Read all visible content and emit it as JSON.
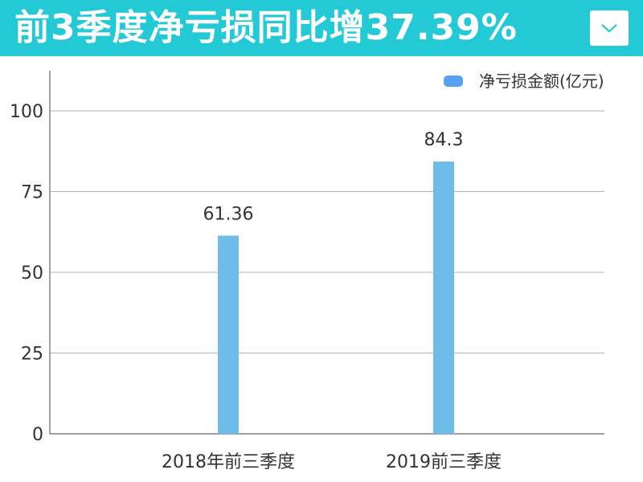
{
  "header": {
    "title": "前3季度净亏损同比增37.39%",
    "dropdown_icon": "chevron-down-icon",
    "background_color": "#24c9d6"
  },
  "chart_data": {
    "type": "bar",
    "categories": [
      "2018年前三季度",
      "2019前三季度"
    ],
    "series": [
      {
        "name": "净亏损金额(亿元)",
        "values": [
          61.36,
          84.3
        ],
        "labels": [
          "61.36",
          "84.3"
        ],
        "color": "#6dbde8",
        "legend_color": "#5aa0f0"
      }
    ],
    "yticks": [
      0,
      25,
      50,
      75,
      100
    ],
    "ylim": [
      0,
      113
    ],
    "grid": true,
    "legend_position": "top-right",
    "title": "",
    "xlabel": "",
    "ylabel": ""
  }
}
